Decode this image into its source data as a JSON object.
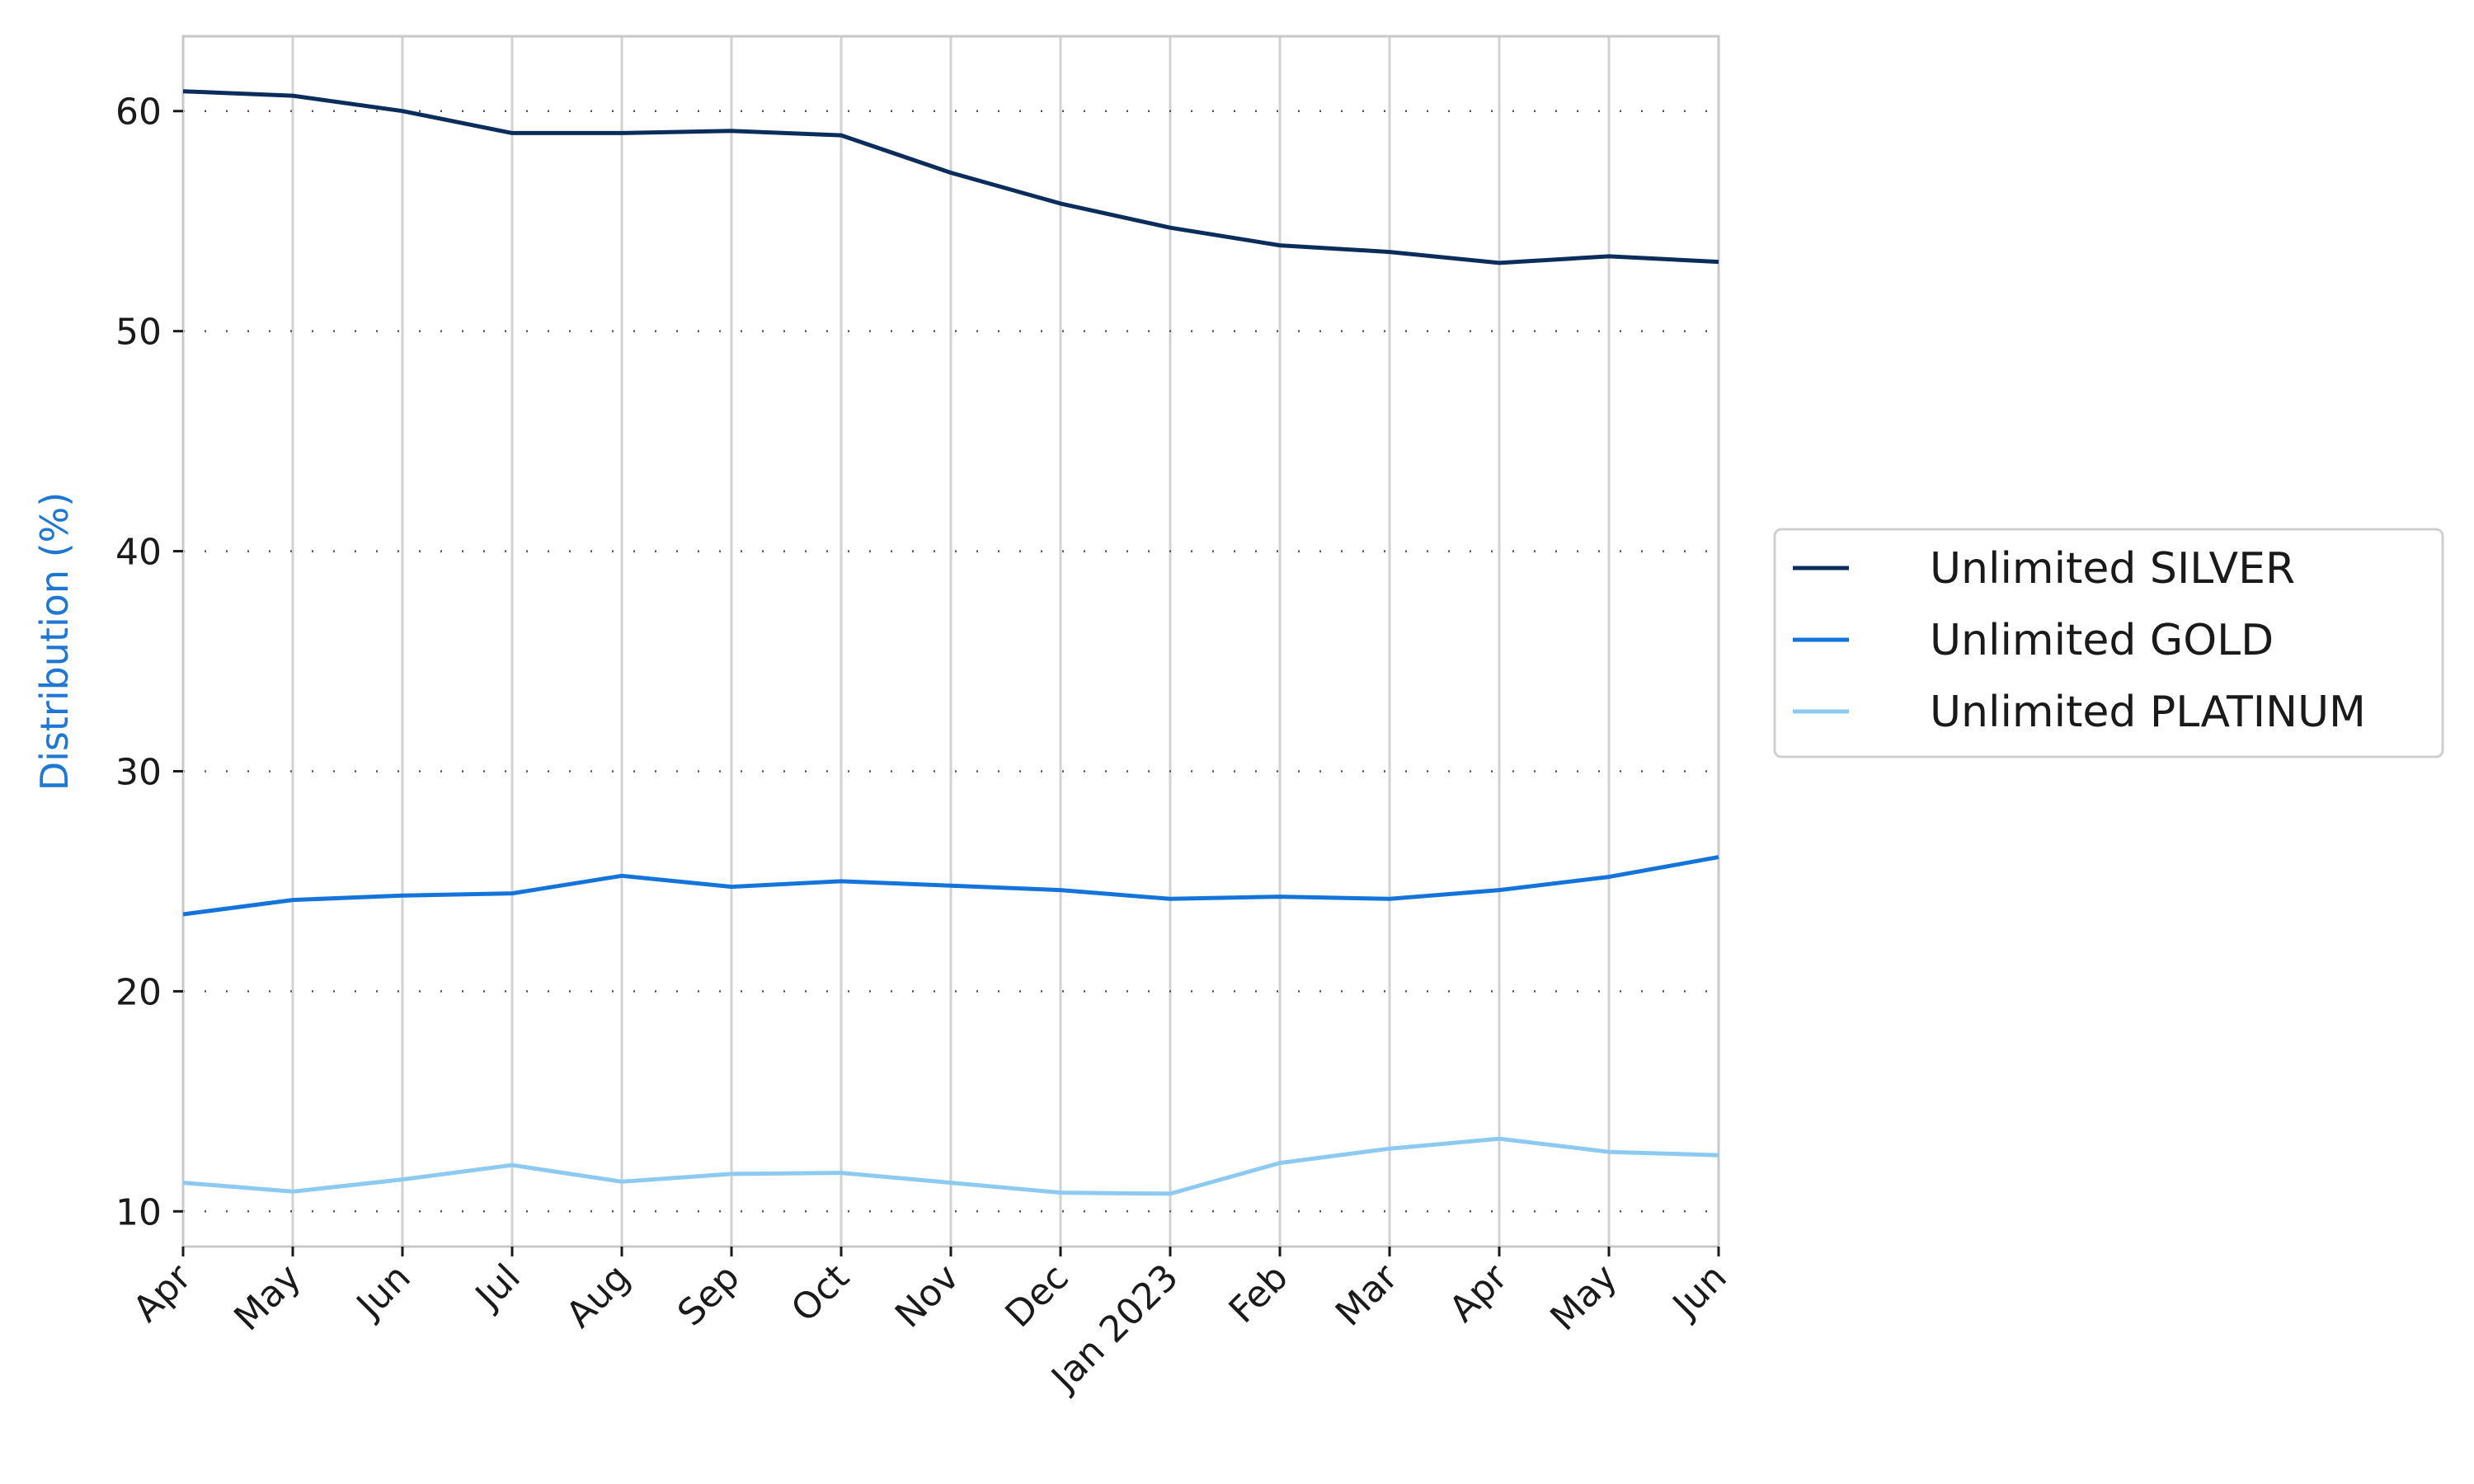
{
  "chart_data": {
    "type": "line",
    "title": "",
    "xlabel": "",
    "ylabel": "Distribution (%)",
    "ylabel_color": "#1f77d4",
    "categories": [
      "Apr",
      "May",
      "Jun",
      "Jul",
      "Aug",
      "Sep",
      "Oct",
      "Nov",
      "Dec",
      "Jan 2023",
      "Feb",
      "Mar",
      "Apr",
      "May",
      "Jun"
    ],
    "ylim": [
      8.4,
      63.4
    ],
    "yticks": [
      10,
      20,
      30,
      40,
      50,
      60
    ],
    "grid": {
      "y": "dotted",
      "x": "solid-light"
    },
    "legend_position": "right-center",
    "series": [
      {
        "name": "Unlimited SILVER",
        "color": "#0b2d5c",
        "values": [
          60.9,
          60.7,
          60.0,
          59.0,
          59.0,
          59.1,
          58.9,
          57.2,
          55.8,
          54.7,
          53.9,
          53.6,
          53.1,
          53.4,
          53.15
        ]
      },
      {
        "name": "Unlimited GOLD",
        "color": "#1474d9",
        "values": [
          23.5,
          24.15,
          24.35,
          24.45,
          25.25,
          24.75,
          25.0,
          24.8,
          24.6,
          24.2,
          24.3,
          24.2,
          24.6,
          25.2,
          26.1
        ]
      },
      {
        "name": "Unlimited PLATINUM",
        "color": "#8ccaf2",
        "values": [
          11.3,
          10.9,
          11.45,
          12.1,
          11.35,
          11.7,
          11.75,
          11.3,
          10.85,
          10.8,
          12.2,
          12.85,
          13.3,
          12.7,
          12.55
        ]
      }
    ]
  }
}
